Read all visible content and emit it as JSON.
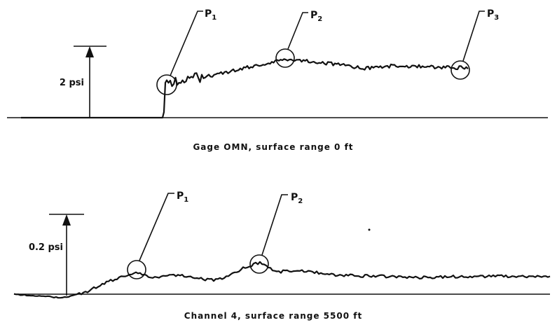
{
  "panels": [
    {
      "scale_label": "2 psi",
      "caption": "Gage OMN, surface range 0 ft",
      "points": [
        {
          "label": "P",
          "sub": "1"
        },
        {
          "label": "P",
          "sub": "2"
        },
        {
          "label": "P",
          "sub": "3"
        }
      ]
    },
    {
      "scale_label": "0.2 psi",
      "caption": "Channel 4, surface range 5500 ft",
      "points": [
        {
          "label": "P",
          "sub": "1"
        },
        {
          "label": "P",
          "sub": "2"
        }
      ]
    }
  ]
}
